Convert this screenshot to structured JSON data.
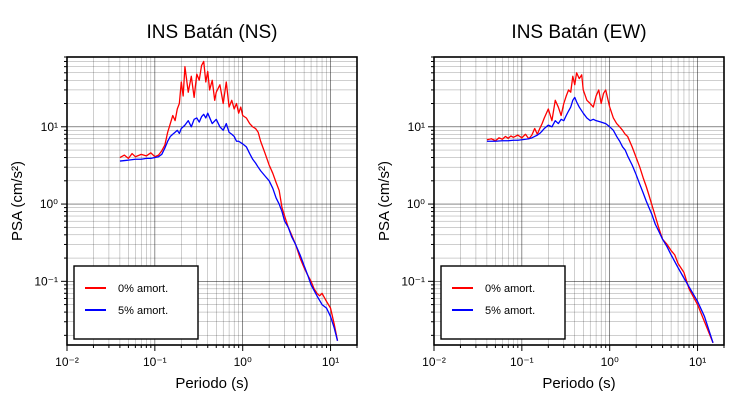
{
  "chart_data": [
    {
      "type": "line",
      "title": "INS Batán (NS)",
      "xlabel": "Periodo (s)",
      "ylabel": "PSA (cm/s²)",
      "x_scale": "log",
      "y_scale": "log",
      "xlim": [
        0.01,
        20
      ],
      "ylim": [
        0.015,
        80
      ],
      "x_ticks": [
        "10⁻²",
        "10⁻¹",
        "10⁰",
        "10¹"
      ],
      "y_ticks": [
        "10⁻¹",
        "10⁰",
        "10¹"
      ],
      "grid": true,
      "legend_position": "bottom-left",
      "series": [
        {
          "name": "0% amort.",
          "color": "#ff0000",
          "x": [
            0.04,
            0.045,
            0.05,
            0.055,
            0.06,
            0.07,
            0.08,
            0.09,
            0.1,
            0.11,
            0.12,
            0.13,
            0.14,
            0.15,
            0.16,
            0.17,
            0.18,
            0.19,
            0.2,
            0.21,
            0.22,
            0.24,
            0.26,
            0.28,
            0.3,
            0.32,
            0.34,
            0.36,
            0.38,
            0.4,
            0.42,
            0.45,
            0.48,
            0.5,
            0.55,
            0.6,
            0.65,
            0.7,
            0.75,
            0.8,
            0.85,
            0.9,
            0.95,
            1.0,
            1.1,
            1.2,
            1.3,
            1.4,
            1.5,
            1.6,
            1.8,
            2.0,
            2.2,
            2.4,
            2.6,
            2.8,
            3.0,
            3.3,
            3.6,
            4.0,
            4.5,
            5.0,
            5.5,
            6.0,
            6.5,
            7.0,
            7.5,
            8.0,
            9.0,
            10.0,
            11.0,
            12.0
          ],
          "y": [
            4.0,
            4.3,
            3.9,
            4.5,
            4.1,
            4.4,
            4.2,
            4.6,
            4.1,
            4.3,
            4.9,
            5.8,
            8.5,
            11,
            14,
            12,
            17,
            20,
            38,
            25,
            60,
            28,
            45,
            24,
            48,
            40,
            62,
            70,
            38,
            52,
            30,
            40,
            22,
            28,
            35,
            20,
            38,
            18,
            22,
            17,
            20,
            15,
            18,
            14,
            13,
            11,
            10,
            9.5,
            8.5,
            6.5,
            4.5,
            3.2,
            2.5,
            1.9,
            1.5,
            0.9,
            0.7,
            0.5,
            0.4,
            0.3,
            0.2,
            0.15,
            0.12,
            0.1,
            0.08,
            0.07,
            0.065,
            0.07,
            0.055,
            0.045,
            0.028,
            0.017
          ]
        },
        {
          "name": "5% amort.",
          "color": "#0000ff",
          "x": [
            0.04,
            0.05,
            0.06,
            0.07,
            0.08,
            0.09,
            0.1,
            0.11,
            0.12,
            0.13,
            0.14,
            0.15,
            0.16,
            0.17,
            0.18,
            0.19,
            0.2,
            0.22,
            0.24,
            0.26,
            0.28,
            0.3,
            0.32,
            0.34,
            0.36,
            0.38,
            0.4,
            0.45,
            0.5,
            0.55,
            0.6,
            0.65,
            0.7,
            0.75,
            0.8,
            0.85,
            0.9,
            1.0,
            1.1,
            1.2,
            1.3,
            1.4,
            1.5,
            1.6,
            1.8,
            2.0,
            2.2,
            2.4,
            2.6,
            2.8,
            3.0,
            3.3,
            3.6,
            4.0,
            4.5,
            5.0,
            5.5,
            6.0,
            7.0,
            8.0,
            9.0,
            10.0,
            11.0,
            12.0
          ],
          "y": [
            3.6,
            3.7,
            3.8,
            3.8,
            3.9,
            3.9,
            4.0,
            4.1,
            4.4,
            5.3,
            6.5,
            7.5,
            8.0,
            8.5,
            9.0,
            8.2,
            9.5,
            10.5,
            12.0,
            10.0,
            12.5,
            13.0,
            11.5,
            13.5,
            14.5,
            13.0,
            15.0,
            11.0,
            12.5,
            10.0,
            9.0,
            11.0,
            8.5,
            8.0,
            7.5,
            6.5,
            6.5,
            6.0,
            5.5,
            4.5,
            3.8,
            3.4,
            3.0,
            2.7,
            2.3,
            2.0,
            1.6,
            1.2,
            1.0,
            0.8,
            0.6,
            0.5,
            0.38,
            0.3,
            0.22,
            0.16,
            0.12,
            0.09,
            0.065,
            0.05,
            0.045,
            0.035,
            0.025,
            0.017
          ]
        }
      ]
    },
    {
      "type": "line",
      "title": "INS Batán (EW)",
      "xlabel": "Periodo (s)",
      "ylabel": "PSA (cm/s²)",
      "x_scale": "log",
      "y_scale": "log",
      "xlim": [
        0.01,
        20
      ],
      "ylim": [
        0.015,
        80
      ],
      "x_ticks": [
        "10⁻²",
        "10⁻¹",
        "10⁰",
        "10¹"
      ],
      "y_ticks": [
        "10⁻¹",
        "10⁰",
        "10¹"
      ],
      "grid": true,
      "legend_position": "bottom-left",
      "series": [
        {
          "name": "0% amort.",
          "color": "#ff0000",
          "x": [
            0.04,
            0.045,
            0.05,
            0.055,
            0.06,
            0.065,
            0.07,
            0.075,
            0.08,
            0.09,
            0.1,
            0.11,
            0.12,
            0.13,
            0.14,
            0.15,
            0.16,
            0.17,
            0.18,
            0.2,
            0.22,
            0.24,
            0.26,
            0.28,
            0.3,
            0.32,
            0.34,
            0.36,
            0.38,
            0.4,
            0.42,
            0.45,
            0.48,
            0.5,
            0.55,
            0.6,
            0.65,
            0.7,
            0.75,
            0.8,
            0.85,
            0.9,
            1.0,
            1.1,
            1.2,
            1.3,
            1.4,
            1.5,
            1.6,
            1.8,
            2.0,
            2.2,
            2.4,
            2.6,
            2.8,
            3.0,
            3.3,
            3.6,
            4.0,
            4.5,
            5.0,
            5.5,
            6.0,
            7.0,
            8.0,
            10.0,
            12.0,
            15.0
          ],
          "y": [
            6.8,
            7.0,
            6.6,
            7.2,
            6.9,
            7.5,
            7.1,
            7.6,
            7.3,
            7.8,
            7.2,
            8.0,
            7.0,
            7.8,
            9.5,
            8.0,
            9.5,
            11,
            13,
            17,
            12,
            22,
            18,
            14,
            20,
            25,
            30,
            28,
            45,
            35,
            50,
            42,
            47,
            30,
            22,
            20,
            18,
            25,
            30,
            20,
            27,
            30,
            18,
            13,
            11,
            10,
            9,
            8.0,
            7.5,
            5.5,
            4.0,
            3.0,
            2.2,
            1.7,
            1.3,
            1.0,
            0.7,
            0.5,
            0.35,
            0.3,
            0.25,
            0.22,
            0.17,
            0.13,
            0.08,
            0.05,
            0.03,
            0.016
          ]
        },
        {
          "name": "5% amort.",
          "color": "#0000ff",
          "x": [
            0.04,
            0.05,
            0.06,
            0.07,
            0.08,
            0.09,
            0.1,
            0.11,
            0.12,
            0.13,
            0.14,
            0.15,
            0.16,
            0.17,
            0.18,
            0.2,
            0.22,
            0.24,
            0.26,
            0.28,
            0.3,
            0.32,
            0.34,
            0.36,
            0.38,
            0.4,
            0.42,
            0.45,
            0.5,
            0.55,
            0.6,
            0.65,
            0.7,
            0.8,
            0.9,
            1.0,
            1.1,
            1.2,
            1.3,
            1.4,
            1.5,
            1.6,
            1.8,
            2.0,
            2.2,
            2.4,
            2.6,
            2.8,
            3.0,
            3.3,
            3.6,
            4.0,
            4.5,
            5.0,
            5.5,
            6.0,
            7.0,
            8.0,
            10.0,
            12.0,
            15.0
          ],
          "y": [
            6.5,
            6.5,
            6.6,
            6.6,
            6.7,
            6.7,
            6.8,
            6.9,
            7.0,
            7.2,
            7.5,
            7.8,
            8.2,
            8.8,
            9.5,
            10.5,
            10.0,
            12.0,
            11.0,
            12.5,
            12.0,
            14.0,
            16.0,
            18.0,
            22.0,
            24.0,
            21.0,
            18.0,
            15.0,
            13.0,
            12.0,
            12.5,
            12.0,
            11.5,
            11.0,
            10.0,
            9.0,
            7.5,
            6.5,
            5.5,
            5.0,
            4.2,
            3.2,
            2.4,
            1.8,
            1.4,
            1.1,
            0.9,
            0.75,
            0.55,
            0.45,
            0.35,
            0.28,
            0.22,
            0.18,
            0.15,
            0.11,
            0.085,
            0.055,
            0.035,
            0.016
          ]
        }
      ]
    }
  ]
}
